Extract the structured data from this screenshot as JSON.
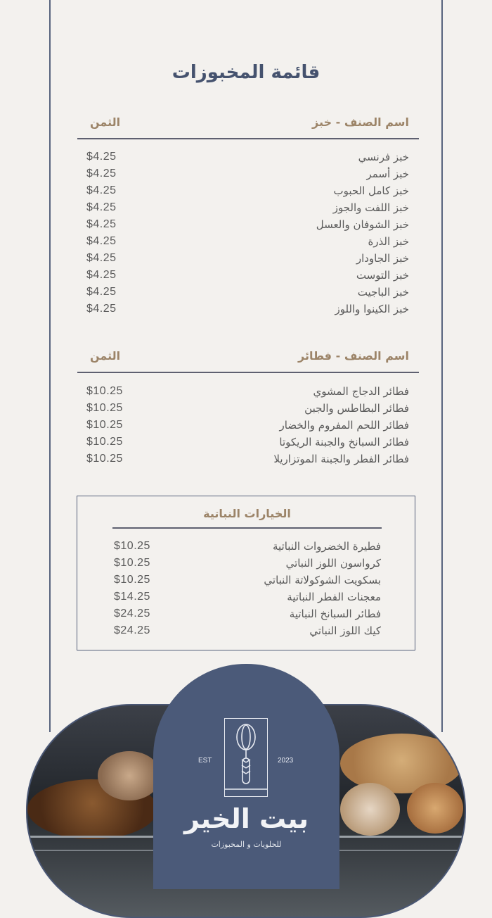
{
  "title": "قائمة المخبوزات",
  "bread_section": {
    "name_header": "اسم الصنف - خبز",
    "price_header": "الثمن",
    "items": [
      {
        "name": "خبز فرنسي",
        "price": "$4.25"
      },
      {
        "name": "خبز أسمر",
        "price": "$4.25"
      },
      {
        "name": "خبز كامل الحبوب",
        "price": "$4.25"
      },
      {
        "name": "خبز اللفت والجوز",
        "price": "$4.25"
      },
      {
        "name": "خبز الشوفان والعسل",
        "price": "$4.25"
      },
      {
        "name": "خبز الذرة",
        "price": "$4.25"
      },
      {
        "name": "خبز الجاودار",
        "price": "$4.25"
      },
      {
        "name": "خبز التوست",
        "price": "$4.25"
      },
      {
        "name": "خبز الباجيت",
        "price": "$4.25"
      },
      {
        "name": "خبز الكينوا واللوز",
        "price": "$4.25"
      }
    ]
  },
  "pie_section": {
    "name_header": "اسم الصنف - فطائر",
    "price_header": "الثمن",
    "items": [
      {
        "name": "فطائر الدجاج المشوي",
        "price": "$10.25"
      },
      {
        "name": "فطائر البطاطس والجبن",
        "price": "$10.25"
      },
      {
        "name": "فطائر اللحم المفروم والخضار",
        "price": "$10.25"
      },
      {
        "name": "فطائر السبانخ والجبنة الريكوتا",
        "price": "$10.25"
      },
      {
        "name": "فطائر الفطر والجبنة الموتزاريلا",
        "price": "$10.25"
      }
    ]
  },
  "vegan_section": {
    "title": "الخيارات النباتية",
    "items": [
      {
        "name": "فطيرة الخضروات النباتية",
        "price": "$10.25"
      },
      {
        "name": "كرواسون اللوز النباتي",
        "price": "$10.25"
      },
      {
        "name": "بسكويت الشوكولاتة النباتي",
        "price": "$10.25"
      },
      {
        "name": "معجنات الفطر النباتية",
        "price": "$14.25"
      },
      {
        "name": "فطائر السبانخ النباتية",
        "price": "$24.25"
      },
      {
        "name": "كيك اللوز النباتي",
        "price": "$24.25"
      }
    ]
  },
  "logo": {
    "est": "EST",
    "year": "2023",
    "brand": "بيت الخير",
    "tagline": "للحلويات و المخبوزات",
    "icon": "whisk-wheat-icon"
  },
  "colors": {
    "navy": "#4b5a79",
    "accent": "#9c8468",
    "background": "#f3f1ee"
  }
}
